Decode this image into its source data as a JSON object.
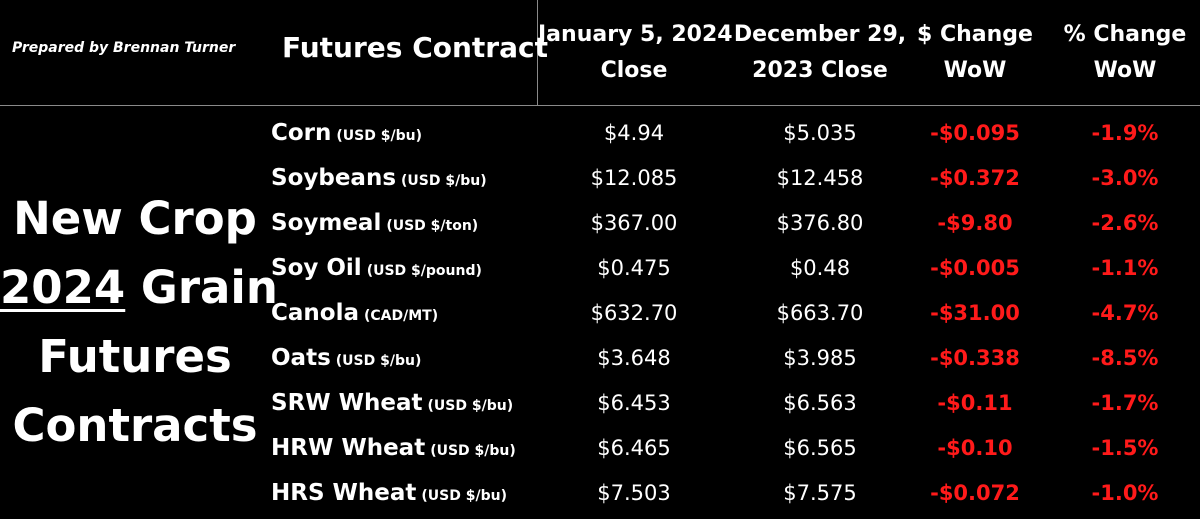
{
  "prepared_by": "Prepared by Brennan Turner",
  "headers": {
    "contract": "Futures Contract",
    "col1": [
      "January 5, 2024",
      "Close"
    ],
    "col2": [
      "December 29,",
      "2023 Close"
    ],
    "col3": [
      "$ Change",
      "WoW"
    ],
    "col4": [
      "% Change",
      "WoW"
    ]
  },
  "title": {
    "line1": "New Crop",
    "year": "2024",
    "line2_rest": " Grain",
    "line3": "Futures",
    "line4": "Contracts"
  },
  "colors": {
    "background": "#000000",
    "text": "#ffffff",
    "negative": "#ff1a1a",
    "divider": "#8a8a8a"
  },
  "rows": [
    {
      "name": "Corn",
      "unit": "(USD $/bu)",
      "jan5": "$4.94",
      "dec29": "$5.035",
      "chg": "-$0.095",
      "pct": "-1.9%"
    },
    {
      "name": "Soybeans",
      "unit": "(USD $/bu)",
      "jan5": "$12.085",
      "dec29": "$12.458",
      "chg": "-$0.372",
      "pct": "-3.0%"
    },
    {
      "name": "Soymeal",
      "unit": "(USD $/ton)",
      "jan5": "$367.00",
      "dec29": "$376.80",
      "chg": "-$9.80",
      "pct": "-2.6%"
    },
    {
      "name": "Soy Oil",
      "unit": "(USD $/pound)",
      "jan5": "$0.475",
      "dec29": "$0.48",
      "chg": "-$0.005",
      "pct": "-1.1%"
    },
    {
      "name": "Canola",
      "unit": "(CAD/MT)",
      "jan5": "$632.70",
      "dec29": "$663.70",
      "chg": "-$31.00",
      "pct": "-4.7%"
    },
    {
      "name": "Oats",
      "unit": "(USD $/bu)",
      "jan5": "$3.648",
      "dec29": "$3.985",
      "chg": "-$0.338",
      "pct": "-8.5%"
    },
    {
      "name": "SRW Wheat",
      "unit": "(USD $/bu)",
      "jan5": "$6.453",
      "dec29": "$6.563",
      "chg": "-$0.11",
      "pct": "-1.7%"
    },
    {
      "name": "HRW Wheat",
      "unit": "(USD $/bu)",
      "jan5": "$6.465",
      "dec29": "$6.565",
      "chg": "-$0.10",
      "pct": "-1.5%"
    },
    {
      "name": "HRS Wheat",
      "unit": "(USD $/bu)",
      "jan5": "$7.503",
      "dec29": "$7.575",
      "chg": "-$0.072",
      "pct": "-1.0%"
    }
  ]
}
